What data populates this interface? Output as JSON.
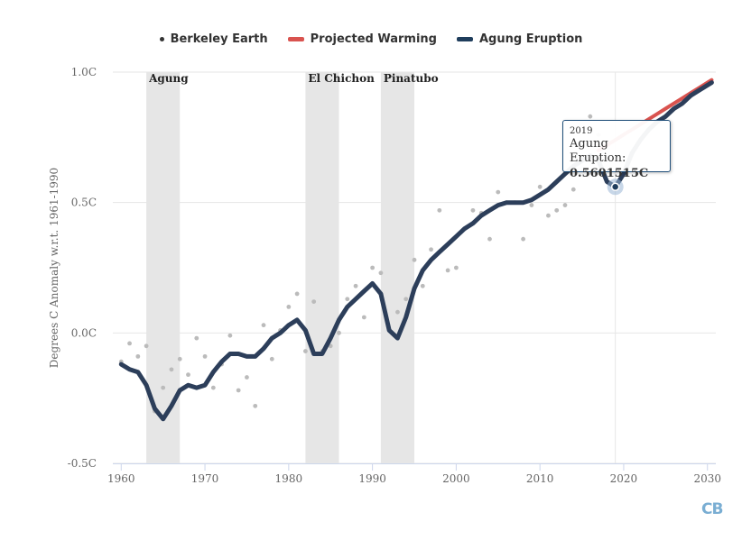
{
  "chart_data": {
    "type": "line",
    "title": "",
    "xlabel": "",
    "ylabel": "Degrees C Anomaly w.r.t. 1961-1990",
    "xlim": [
      1959,
      2031
    ],
    "ylim": [
      -0.5,
      1.0
    ],
    "x_ticks": [
      1960,
      1970,
      1980,
      1990,
      2000,
      2010,
      2020,
      2030
    ],
    "y_ticks": [
      {
        "value": -0.5,
        "label": "-0.5C"
      },
      {
        "value": 0.0,
        "label": "0.0C"
      },
      {
        "value": 0.5,
        "label": "0.5C"
      },
      {
        "value": 1.0,
        "label": "1.0C"
      }
    ],
    "legend_position": "top-center",
    "eruptions": [
      {
        "label": "Agung",
        "start": 1963,
        "end": 1967
      },
      {
        "label": "El Chichon",
        "start": 1982,
        "end": 1986
      },
      {
        "label": "Pinatubo",
        "start": 1991,
        "end": 1995
      }
    ],
    "series": [
      {
        "name": "Berkeley Earth",
        "kind": "scatter",
        "color": "#bbbbbb",
        "points": [
          [
            1960,
            -0.11
          ],
          [
            1961,
            -0.04
          ],
          [
            1962,
            -0.09
          ],
          [
            1963,
            -0.05
          ],
          [
            1964,
            -0.3
          ],
          [
            1965,
            -0.21
          ],
          [
            1966,
            -0.14
          ],
          [
            1967,
            -0.1
          ],
          [
            1968,
            -0.16
          ],
          [
            1969,
            -0.02
          ],
          [
            1970,
            -0.09
          ],
          [
            1971,
            -0.21
          ],
          [
            1972,
            -0.12
          ],
          [
            1973,
            -0.01
          ],
          [
            1974,
            -0.22
          ],
          [
            1975,
            -0.17
          ],
          [
            1976,
            -0.28
          ],
          [
            1977,
            0.03
          ],
          [
            1978,
            -0.1
          ],
          [
            1979,
            0.01
          ],
          [
            1980,
            0.1
          ],
          [
            1981,
            0.15
          ],
          [
            1982,
            -0.07
          ],
          [
            1983,
            0.12
          ],
          [
            1984,
            -0.07
          ],
          [
            1985,
            -0.05
          ],
          [
            1986,
            0.0
          ],
          [
            1987,
            0.13
          ],
          [
            1988,
            0.18
          ],
          [
            1989,
            0.06
          ],
          [
            1990,
            0.25
          ],
          [
            1991,
            0.23
          ],
          [
            1992,
            0.01
          ],
          [
            1993,
            0.08
          ],
          [
            1994,
            0.13
          ],
          [
            1995,
            0.28
          ],
          [
            1996,
            0.18
          ],
          [
            1997,
            0.32
          ],
          [
            1998,
            0.47
          ],
          [
            1999,
            0.24
          ],
          [
            2000,
            0.25
          ],
          [
            2001,
            0.4
          ],
          [
            2002,
            0.47
          ],
          [
            2003,
            0.46
          ],
          [
            2004,
            0.36
          ],
          [
            2005,
            0.54
          ],
          [
            2006,
            0.5
          ],
          [
            2007,
            0.5
          ],
          [
            2008,
            0.36
          ],
          [
            2009,
            0.49
          ],
          [
            2010,
            0.56
          ],
          [
            2011,
            0.45
          ],
          [
            2012,
            0.47
          ],
          [
            2013,
            0.49
          ],
          [
            2014,
            0.55
          ],
          [
            2015,
            0.72
          ],
          [
            2016,
            0.83
          ],
          [
            2017,
            0.76
          ]
        ]
      },
      {
        "name": "Projected Warming",
        "kind": "line",
        "color": "#d9534f",
        "points": [
          [
            2017,
            0.7
          ],
          [
            2018,
            0.72
          ],
          [
            2019,
            0.74
          ],
          [
            2020,
            0.76
          ],
          [
            2021,
            0.78
          ],
          [
            2022,
            0.8
          ],
          [
            2023,
            0.82
          ],
          [
            2024,
            0.84
          ],
          [
            2025,
            0.86
          ],
          [
            2026,
            0.88
          ],
          [
            2027,
            0.9
          ],
          [
            2028,
            0.92
          ],
          [
            2029,
            0.94
          ],
          [
            2030,
            0.96
          ],
          [
            2030.5,
            0.97
          ]
        ]
      },
      {
        "name": "Agung Eruption",
        "kind": "line",
        "color": "#2c3e5a",
        "points": [
          [
            1960,
            -0.12
          ],
          [
            1961,
            -0.14
          ],
          [
            1962,
            -0.15
          ],
          [
            1963,
            -0.2
          ],
          [
            1964,
            -0.29
          ],
          [
            1965,
            -0.33
          ],
          [
            1966,
            -0.28
          ],
          [
            1967,
            -0.22
          ],
          [
            1968,
            -0.2
          ],
          [
            1969,
            -0.21
          ],
          [
            1970,
            -0.2
          ],
          [
            1971,
            -0.15
          ],
          [
            1972,
            -0.11
          ],
          [
            1973,
            -0.08
          ],
          [
            1974,
            -0.08
          ],
          [
            1975,
            -0.09
          ],
          [
            1976,
            -0.09
          ],
          [
            1977,
            -0.06
          ],
          [
            1978,
            -0.02
          ],
          [
            1979,
            0.0
          ],
          [
            1980,
            0.03
          ],
          [
            1981,
            0.05
          ],
          [
            1982,
            0.01
          ],
          [
            1983,
            -0.08
          ],
          [
            1984,
            -0.08
          ],
          [
            1985,
            -0.02
          ],
          [
            1986,
            0.05
          ],
          [
            1987,
            0.1
          ],
          [
            1988,
            0.13
          ],
          [
            1989,
            0.16
          ],
          [
            1990,
            0.19
          ],
          [
            1991,
            0.15
          ],
          [
            1992,
            0.01
          ],
          [
            1993,
            -0.02
          ],
          [
            1994,
            0.06
          ],
          [
            1995,
            0.17
          ],
          [
            1996,
            0.24
          ],
          [
            1997,
            0.28
          ],
          [
            1998,
            0.31
          ],
          [
            1999,
            0.34
          ],
          [
            2000,
            0.37
          ],
          [
            2001,
            0.4
          ],
          [
            2002,
            0.42
          ],
          [
            2003,
            0.45
          ],
          [
            2004,
            0.47
          ],
          [
            2005,
            0.49
          ],
          [
            2006,
            0.5
          ],
          [
            2007,
            0.5
          ],
          [
            2008,
            0.5
          ],
          [
            2009,
            0.51
          ],
          [
            2010,
            0.53
          ],
          [
            2011,
            0.55
          ],
          [
            2012,
            0.58
          ],
          [
            2013,
            0.61
          ],
          [
            2014,
            0.64
          ],
          [
            2015,
            0.66
          ],
          [
            2016,
            0.68
          ],
          [
            2017,
            0.66
          ],
          [
            2018,
            0.58
          ],
          [
            2019,
            0.56
          ],
          [
            2020,
            0.61
          ],
          [
            2021,
            0.69
          ],
          [
            2022,
            0.74
          ],
          [
            2023,
            0.78
          ],
          [
            2024,
            0.81
          ],
          [
            2025,
            0.83
          ],
          [
            2026,
            0.86
          ],
          [
            2027,
            0.88
          ],
          [
            2028,
            0.91
          ],
          [
            2029,
            0.93
          ],
          [
            2030,
            0.95
          ],
          [
            2030.5,
            0.96
          ]
        ]
      }
    ]
  },
  "legend": {
    "items": [
      {
        "label": "Berkeley Earth",
        "symbol": "dot",
        "color": "#333333"
      },
      {
        "label": "Projected Warming",
        "symbol": "line",
        "color": "#d9534f"
      },
      {
        "label": "Agung Eruption",
        "symbol": "line",
        "color": "#1f3d5c"
      }
    ]
  },
  "tooltip": {
    "x": "2019",
    "series_name": "Agung Eruption:",
    "value": "0.5601515C",
    "point": [
      2019,
      0.5601515
    ]
  },
  "logo": {
    "text": "CB",
    "color": "#7aaed3"
  }
}
